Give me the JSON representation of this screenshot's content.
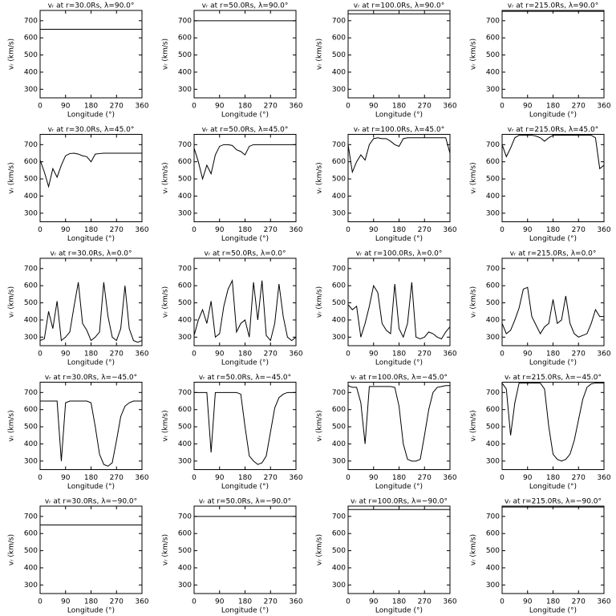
{
  "chart_data": [
    {
      "type": "line",
      "title": "vᵣ at r=30.0Rs, λ=90.0°",
      "xlabel": "Longitude (°)",
      "ylabel": "vᵣ (km/s)",
      "x": [
        0,
        360
      ],
      "values": [
        650,
        650
      ],
      "xlim": [
        0,
        360
      ],
      "ylim": [
        250,
        760
      ],
      "xticks": [
        0,
        90,
        180,
        270,
        360
      ],
      "yticks": [
        300,
        400,
        500,
        600,
        700
      ],
      "color": "#000000"
    },
    {
      "type": "line",
      "title": "vᵣ at r=50.0Rs, λ=90.0°",
      "xlabel": "Longitude (°)",
      "ylabel": "vᵣ (km/s)",
      "x": [
        0,
        360
      ],
      "values": [
        700,
        700
      ],
      "xlim": [
        0,
        360
      ],
      "ylim": [
        250,
        760
      ],
      "xticks": [
        0,
        90,
        180,
        270,
        360
      ],
      "yticks": [
        300,
        400,
        500,
        600,
        700
      ],
      "color": "#000000"
    },
    {
      "type": "line",
      "title": "vᵣ at r=100.0Rs, λ=90.0°",
      "xlabel": "Longitude (°)",
      "ylabel": "vᵣ (km/s)",
      "x": [
        0,
        360
      ],
      "values": [
        740,
        740
      ],
      "xlim": [
        0,
        360
      ],
      "ylim": [
        250,
        760
      ],
      "xticks": [
        0,
        90,
        180,
        270,
        360
      ],
      "yticks": [
        300,
        400,
        500,
        600,
        700
      ],
      "color": "#000000"
    },
    {
      "type": "line",
      "title": "vᵣ at r=215.0Rs, λ=90.0°",
      "xlabel": "Longitude (°)",
      "ylabel": "vᵣ (km/s)",
      "x": [
        0,
        360
      ],
      "values": [
        755,
        755
      ],
      "xlim": [
        0,
        360
      ],
      "ylim": [
        250,
        760
      ],
      "xticks": [
        0,
        90,
        180,
        270,
        360
      ],
      "yticks": [
        300,
        400,
        500,
        600,
        700
      ],
      "color": "#000000"
    },
    {
      "type": "line",
      "title": "vᵣ at r=30.0Rs, λ=45.0°",
      "xlabel": "Longitude (°)",
      "ylabel": "vᵣ (km/s)",
      "x": [
        0,
        15,
        30,
        45,
        60,
        75,
        90,
        105,
        120,
        135,
        150,
        165,
        180,
        195,
        210,
        225,
        240,
        255,
        270,
        285,
        300,
        315,
        330,
        345,
        360
      ],
      "values": [
        610,
        540,
        455,
        560,
        510,
        580,
        635,
        648,
        650,
        645,
        635,
        630,
        600,
        645,
        648,
        650,
        650,
        650,
        650,
        650,
        650,
        650,
        650,
        650,
        650
      ],
      "xlim": [
        0,
        360
      ],
      "ylim": [
        250,
        760
      ],
      "xticks": [
        0,
        90,
        180,
        270,
        360
      ],
      "yticks": [
        300,
        400,
        500,
        600,
        700
      ],
      "color": "#000000"
    },
    {
      "type": "line",
      "title": "vᵣ at r=50.0Rs, λ=45.0°",
      "xlabel": "Longitude (°)",
      "ylabel": "vᵣ (km/s)",
      "x": [
        0,
        15,
        30,
        45,
        60,
        75,
        90,
        105,
        120,
        135,
        150,
        165,
        180,
        195,
        210,
        225,
        240,
        255,
        270,
        285,
        300,
        315,
        330,
        345,
        360
      ],
      "values": [
        680,
        600,
        500,
        580,
        530,
        640,
        690,
        700,
        700,
        695,
        670,
        660,
        640,
        690,
        700,
        700,
        700,
        700,
        700,
        700,
        700,
        700,
        700,
        700,
        700
      ],
      "xlim": [
        0,
        360
      ],
      "ylim": [
        250,
        760
      ],
      "xticks": [
        0,
        90,
        180,
        270,
        360
      ],
      "yticks": [
        300,
        400,
        500,
        600,
        700
      ],
      "color": "#000000"
    },
    {
      "type": "line",
      "title": "vᵣ at r=100.0Rs, λ=45.0°",
      "xlabel": "Longitude (°)",
      "ylabel": "vᵣ (km/s)",
      "x": [
        0,
        15,
        30,
        45,
        60,
        75,
        90,
        105,
        120,
        135,
        150,
        165,
        180,
        195,
        210,
        225,
        240,
        255,
        270,
        285,
        300,
        315,
        330,
        345,
        360
      ],
      "values": [
        700,
        540,
        600,
        640,
        610,
        700,
        735,
        740,
        735,
        735,
        720,
        700,
        690,
        735,
        740,
        740,
        740,
        740,
        740,
        740,
        740,
        740,
        740,
        740,
        650
      ],
      "xlim": [
        0,
        360
      ],
      "ylim": [
        250,
        760
      ],
      "xticks": [
        0,
        90,
        180,
        270,
        360
      ],
      "yticks": [
        300,
        400,
        500,
        600,
        700
      ],
      "color": "#000000"
    },
    {
      "type": "line",
      "title": "vᵣ at r=215.0Rs, λ=45.0°",
      "xlabel": "Longitude (°)",
      "ylabel": "vᵣ (km/s)",
      "x": [
        0,
        15,
        30,
        45,
        60,
        75,
        90,
        105,
        120,
        135,
        150,
        165,
        180,
        195,
        210,
        225,
        240,
        255,
        270,
        285,
        300,
        315,
        330,
        345,
        360
      ],
      "values": [
        700,
        630,
        680,
        740,
        755,
        755,
        755,
        755,
        750,
        740,
        720,
        740,
        755,
        755,
        755,
        755,
        755,
        755,
        755,
        755,
        755,
        755,
        740,
        560,
        580
      ],
      "xlim": [
        0,
        360
      ],
      "ylim": [
        250,
        760
      ],
      "xticks": [
        0,
        90,
        180,
        270,
        360
      ],
      "yticks": [
        300,
        400,
        500,
        600,
        700
      ],
      "color": "#000000"
    },
    {
      "type": "line",
      "title": "vᵣ at r=30.0Rs, λ=0.0°",
      "xlabel": "Longitude (°)",
      "ylabel": "vᵣ (km/s)",
      "x": [
        0,
        15,
        30,
        45,
        60,
        75,
        90,
        105,
        120,
        135,
        150,
        165,
        180,
        195,
        210,
        225,
        240,
        255,
        270,
        285,
        300,
        315,
        330,
        345,
        360
      ],
      "values": [
        280,
        290,
        450,
        350,
        510,
        280,
        300,
        330,
        480,
        620,
        380,
        340,
        280,
        300,
        330,
        620,
        420,
        300,
        280,
        350,
        600,
        350,
        280,
        270,
        280
      ],
      "xlim": [
        0,
        360
      ],
      "ylim": [
        250,
        760
      ],
      "xticks": [
        0,
        90,
        180,
        270,
        360
      ],
      "yticks": [
        300,
        400,
        500,
        600,
        700
      ],
      "color": "#000000"
    },
    {
      "type": "line",
      "title": "vᵣ at r=50.0Rs, λ=0.0°",
      "xlabel": "Longitude (°)",
      "ylabel": "vᵣ (km/s)",
      "x": [
        0,
        15,
        30,
        45,
        60,
        75,
        90,
        105,
        120,
        135,
        150,
        165,
        180,
        195,
        210,
        225,
        240,
        255,
        270,
        285,
        300,
        315,
        330,
        345,
        360
      ],
      "values": [
        310,
        400,
        460,
        380,
        510,
        300,
        320,
        480,
        580,
        630,
        330,
        380,
        400,
        300,
        620,
        400,
        630,
        310,
        280,
        380,
        610,
        420,
        300,
        280,
        300
      ],
      "xlim": [
        0,
        360
      ],
      "ylim": [
        250,
        760
      ],
      "xticks": [
        0,
        90,
        180,
        270,
        360
      ],
      "yticks": [
        300,
        400,
        500,
        600,
        700
      ],
      "color": "#000000"
    },
    {
      "type": "line",
      "title": "vᵣ at r=100.0Rs, λ=0.0°",
      "xlabel": "Longitude (°)",
      "ylabel": "vᵣ (km/s)",
      "x": [
        0,
        15,
        30,
        45,
        60,
        75,
        90,
        105,
        120,
        135,
        150,
        165,
        180,
        195,
        210,
        225,
        240,
        255,
        270,
        285,
        300,
        315,
        330,
        345,
        360
      ],
      "values": [
        490,
        460,
        480,
        300,
        380,
        480,
        600,
        560,
        380,
        340,
        320,
        610,
        350,
        300,
        380,
        620,
        300,
        290,
        300,
        330,
        320,
        300,
        290,
        330,
        360
      ],
      "xlim": [
        0,
        360
      ],
      "ylim": [
        250,
        760
      ],
      "xticks": [
        0,
        90,
        180,
        270,
        360
      ],
      "yticks": [
        300,
        400,
        500,
        600,
        700
      ],
      "color": "#000000"
    },
    {
      "type": "line",
      "title": "vᵣ at r=215.0Rs, λ=0.0°",
      "xlabel": "Longitude (°)",
      "ylabel": "vᵣ (km/s)",
      "x": [
        0,
        15,
        30,
        45,
        60,
        75,
        90,
        105,
        120,
        135,
        150,
        165,
        180,
        195,
        210,
        225,
        240,
        255,
        270,
        285,
        300,
        315,
        330,
        345,
        360
      ],
      "values": [
        380,
        320,
        340,
        400,
        470,
        580,
        590,
        420,
        370,
        320,
        360,
        380,
        520,
        380,
        400,
        540,
        380,
        320,
        300,
        310,
        320,
        380,
        460,
        420,
        420
      ],
      "xlim": [
        0,
        360
      ],
      "ylim": [
        250,
        760
      ],
      "xticks": [
        0,
        90,
        180,
        270,
        360
      ],
      "yticks": [
        300,
        400,
        500,
        600,
        700
      ],
      "color": "#000000"
    },
    {
      "type": "line",
      "title": "vᵣ at r=30.0Rs, λ=−45.0°",
      "xlabel": "Longitude (°)",
      "ylabel": "vᵣ (km/s)",
      "x": [
        0,
        15,
        30,
        45,
        60,
        75,
        90,
        105,
        120,
        135,
        150,
        165,
        180,
        195,
        210,
        225,
        240,
        255,
        270,
        285,
        300,
        315,
        330,
        345,
        360
      ],
      "values": [
        650,
        650,
        650,
        650,
        650,
        300,
        640,
        650,
        650,
        650,
        650,
        650,
        640,
        500,
        340,
        280,
        270,
        290,
        420,
        560,
        620,
        640,
        650,
        650,
        650
      ],
      "xlim": [
        0,
        360
      ],
      "ylim": [
        250,
        760
      ],
      "xticks": [
        0,
        90,
        180,
        270,
        360
      ],
      "yticks": [
        300,
        400,
        500,
        600,
        700
      ],
      "color": "#000000"
    },
    {
      "type": "line",
      "title": "vᵣ at r=50.0Rs, λ=−45.0°",
      "xlabel": "Longitude (°)",
      "ylabel": "vᵣ (km/s)",
      "x": [
        0,
        15,
        30,
        45,
        60,
        75,
        90,
        105,
        120,
        135,
        150,
        165,
        180,
        195,
        210,
        225,
        240,
        255,
        270,
        285,
        300,
        315,
        330,
        345,
        360
      ],
      "values": [
        700,
        700,
        700,
        700,
        350,
        700,
        700,
        700,
        700,
        700,
        700,
        690,
        500,
        330,
        300,
        280,
        290,
        330,
        470,
        610,
        670,
        690,
        700,
        700,
        700
      ],
      "xlim": [
        0,
        360
      ],
      "ylim": [
        250,
        760
      ],
      "xticks": [
        0,
        90,
        180,
        270,
        360
      ],
      "yticks": [
        300,
        400,
        500,
        600,
        700
      ],
      "color": "#000000"
    },
    {
      "type": "line",
      "title": "vᵣ at r=100.0Rs, λ=−45.0°",
      "xlabel": "Longitude (°)",
      "ylabel": "vᵣ (km/s)",
      "x": [
        0,
        15,
        30,
        45,
        60,
        75,
        90,
        105,
        120,
        135,
        150,
        165,
        180,
        195,
        210,
        225,
        240,
        255,
        270,
        285,
        300,
        315,
        330,
        345,
        360
      ],
      "values": [
        740,
        730,
        730,
        640,
        400,
        735,
        735,
        735,
        735,
        735,
        735,
        730,
        620,
        400,
        310,
        300,
        300,
        310,
        450,
        600,
        700,
        730,
        735,
        740,
        740
      ],
      "xlim": [
        0,
        360
      ],
      "ylim": [
        250,
        760
      ],
      "xticks": [
        0,
        90,
        180,
        270,
        360
      ],
      "yticks": [
        300,
        400,
        500,
        600,
        700
      ],
      "color": "#000000"
    },
    {
      "type": "line",
      "title": "vᵣ at r=215.0Rs, λ=−45.0°",
      "xlabel": "Longitude (°)",
      "ylabel": "vᵣ (km/s)",
      "x": [
        0,
        15,
        30,
        45,
        60,
        75,
        90,
        105,
        120,
        135,
        150,
        165,
        180,
        195,
        210,
        225,
        240,
        255,
        270,
        285,
        300,
        315,
        330,
        345,
        360
      ],
      "values": [
        755,
        720,
        450,
        640,
        755,
        755,
        755,
        755,
        755,
        755,
        720,
        500,
        340,
        310,
        300,
        310,
        340,
        420,
        540,
        660,
        730,
        750,
        755,
        755,
        755
      ],
      "xlim": [
        0,
        360
      ],
      "ylim": [
        250,
        760
      ],
      "xticks": [
        0,
        90,
        180,
        270,
        360
      ],
      "yticks": [
        300,
        400,
        500,
        600,
        700
      ],
      "color": "#000000"
    },
    {
      "type": "line",
      "title": "vᵣ at r=30.0Rs, λ=−90.0°",
      "xlabel": "Longitude (°)",
      "ylabel": "vᵣ (km/s)",
      "x": [
        0,
        360
      ],
      "values": [
        650,
        650
      ],
      "xlim": [
        0,
        360
      ],
      "ylim": [
        250,
        760
      ],
      "xticks": [
        0,
        90,
        180,
        270,
        360
      ],
      "yticks": [
        300,
        400,
        500,
        600,
        700
      ],
      "color": "#000000"
    },
    {
      "type": "line",
      "title": "vᵣ at r=50.0Rs, λ=−90.0°",
      "xlabel": "Longitude (°)",
      "ylabel": "vᵣ (km/s)",
      "x": [
        0,
        360
      ],
      "values": [
        700,
        700
      ],
      "xlim": [
        0,
        360
      ],
      "ylim": [
        250,
        760
      ],
      "xticks": [
        0,
        90,
        180,
        270,
        360
      ],
      "yticks": [
        300,
        400,
        500,
        600,
        700
      ],
      "color": "#000000"
    },
    {
      "type": "line",
      "title": "vᵣ at r=100.0Rs, λ=−90.0°",
      "xlabel": "Longitude (°)",
      "ylabel": "vᵣ (km/s)",
      "x": [
        0,
        360
      ],
      "values": [
        740,
        740
      ],
      "xlim": [
        0,
        360
      ],
      "ylim": [
        250,
        760
      ],
      "xticks": [
        0,
        90,
        180,
        270,
        360
      ],
      "yticks": [
        300,
        400,
        500,
        600,
        700
      ],
      "color": "#000000"
    },
    {
      "type": "line",
      "title": "vᵣ at r=215.0Rs, λ=−90.0°",
      "xlabel": "Longitude (°)",
      "ylabel": "vᵣ (km/s)",
      "x": [
        0,
        360
      ],
      "values": [
        755,
        755
      ],
      "xlim": [
        0,
        360
      ],
      "ylim": [
        250,
        760
      ],
      "xticks": [
        0,
        90,
        180,
        270,
        360
      ],
      "yticks": [
        300,
        400,
        500,
        600,
        700
      ],
      "color": "#000000"
    }
  ]
}
